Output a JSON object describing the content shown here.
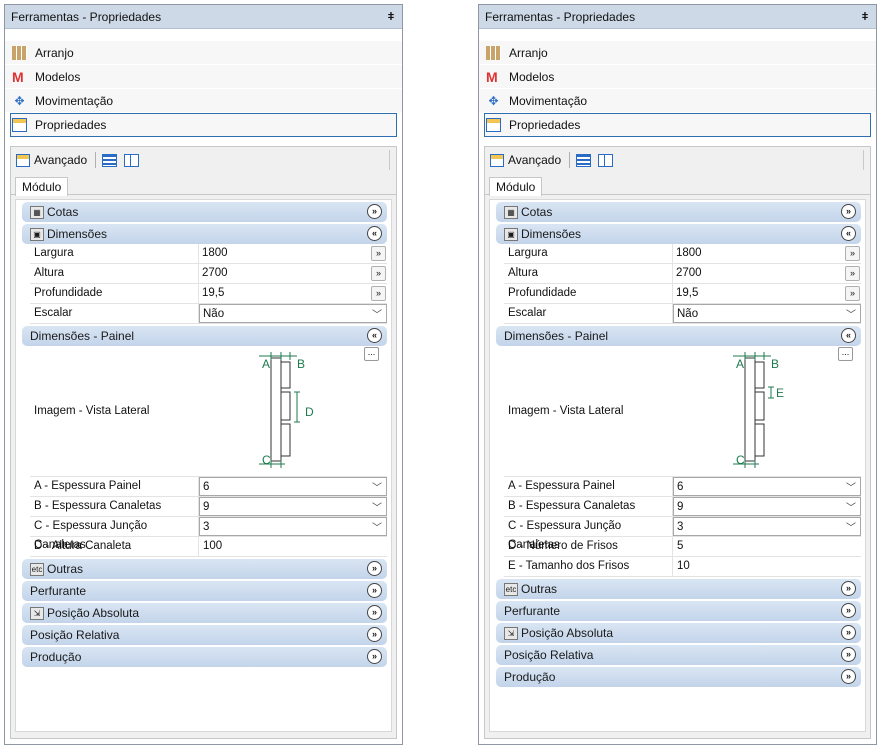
{
  "panels": [
    {
      "title": "Ferramentas - Propriedades",
      "nav": [
        "Arranjo",
        "Modelos",
        "Movimentação",
        "Propriedades"
      ],
      "toolbar_label": "Avançado",
      "tab": "Módulo",
      "cats": {
        "cotas": "Cotas",
        "dim": "Dimensões",
        "painel": "Dimensões - Painel",
        "outras": "Outras",
        "perfurante": "Perfurante",
        "posabs": "Posição Absoluta",
        "posrel": "Posição Relativa",
        "producao": "Produção"
      },
      "dim_rows": [
        {
          "k": "Largura",
          "v": "1800"
        },
        {
          "k": "Altura",
          "v": "2700"
        },
        {
          "k": "Profundidade",
          "v": "19,5"
        },
        {
          "k": "Escalar",
          "v": "Não"
        }
      ],
      "image_label": "Imagem - Vista Lateral",
      "image_letters": [
        "A",
        "B",
        "C",
        "D"
      ],
      "painel_rows": [
        {
          "k": "A - Espessura Painel",
          "v": "6"
        },
        {
          "k": "B - Espessura Canaletas",
          "v": "9"
        },
        {
          "k": "C - Espessura Junção Canaletas",
          "v": "3"
        },
        {
          "k": "D - Altura Canaleta",
          "v": "100"
        }
      ]
    },
    {
      "title": "Ferramentas - Propriedades",
      "nav": [
        "Arranjo",
        "Modelos",
        "Movimentação",
        "Propriedades"
      ],
      "toolbar_label": "Avançado",
      "tab": "Módulo",
      "cats": {
        "cotas": "Cotas",
        "dim": "Dimensões",
        "painel": "Dimensões - Painel",
        "outras": "Outras",
        "perfurante": "Perfurante",
        "posabs": "Posição Absoluta",
        "posrel": "Posição Relativa",
        "producao": "Produção"
      },
      "dim_rows": [
        {
          "k": "Largura",
          "v": "1800"
        },
        {
          "k": "Altura",
          "v": "2700"
        },
        {
          "k": "Profundidade",
          "v": "19,5"
        },
        {
          "k": "Escalar",
          "v": "Não"
        }
      ],
      "image_label": "Imagem - Vista Lateral",
      "image_letters": [
        "A",
        "B",
        "C",
        "E"
      ],
      "painel_rows": [
        {
          "k": "A - Espessura Painel",
          "v": "6"
        },
        {
          "k": "B - Espessura Canaletas",
          "v": "9"
        },
        {
          "k": "C - Espessura Junção Canaletas",
          "v": "3"
        },
        {
          "k": "D - Número de Frisos",
          "v": "5"
        },
        {
          "k": "E - Tamanho dos Frisos",
          "v": "10"
        }
      ]
    }
  ],
  "colors": {
    "accent": "#2f6fb0",
    "category_bg": "#c3d4ea",
    "diagram": "#1e7a4e"
  },
  "icons": {
    "arranjo": "grid-icon",
    "modelos": "m-logo-icon",
    "movimentacao": "move-icon",
    "propriedades": "properties-icon"
  }
}
